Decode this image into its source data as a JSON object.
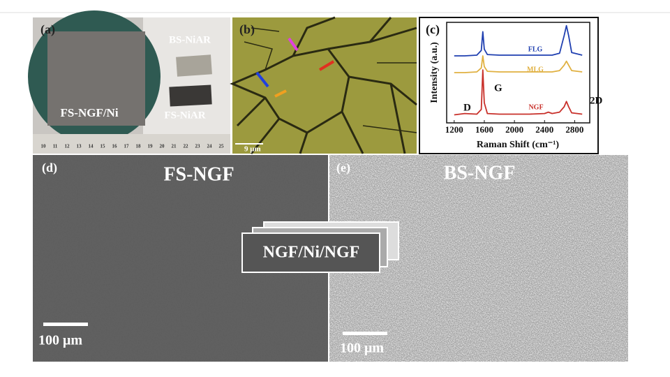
{
  "panels": {
    "a": {
      "label": "(a)",
      "texts": [
        "BS-NiAR",
        "FS-NGF/Ni",
        "FS-NiAR"
      ],
      "ruler": [
        10,
        11,
        12,
        13,
        14,
        15,
        16,
        17,
        18,
        19,
        20,
        21,
        22,
        23,
        24,
        25
      ]
    },
    "b": {
      "label": "(b)",
      "scale_bar": "9 μm"
    },
    "c": {
      "label": "(c)"
    },
    "d": {
      "label": "(d)",
      "title": "FS-NGF",
      "scale_bar": "100 μm"
    },
    "e": {
      "label": "(e)",
      "title": "BS-NGF",
      "scale_bar": "100 μm"
    }
  },
  "overlay": "NGF/Ni/NGF",
  "chart_data": {
    "type": "line",
    "xlabel": "Raman Shift (cm⁻¹)",
    "ylabel": "Intensity (a.u.)",
    "x": [
      1200,
      1340,
      1500,
      1560,
      1580,
      1600,
      1640,
      1800,
      2000,
      2200,
      2400,
      2450,
      2500,
      2600,
      2660,
      2690,
      2720,
      2760,
      2900
    ],
    "series": [
      {
        "name": "FLG",
        "color": "#1f3fb0",
        "values": [
          1.0,
          1.0,
          1.01,
          1.08,
          1.36,
          1.1,
          1.02,
          1.01,
          1.01,
          1.01,
          1.01,
          1.01,
          1.01,
          1.04,
          1.3,
          1.45,
          1.3,
          1.05,
          1.01
        ]
      },
      {
        "name": "MLG",
        "color": "#e0b040",
        "values": [
          0.75,
          0.75,
          0.76,
          0.82,
          1.0,
          0.84,
          0.77,
          0.76,
          0.76,
          0.76,
          0.76,
          0.76,
          0.76,
          0.78,
          0.86,
          0.92,
          0.86,
          0.78,
          0.76
        ]
      },
      {
        "name": "NGF",
        "color": "#c8302a",
        "values": [
          0.12,
          0.14,
          0.13,
          0.2,
          0.79,
          0.3,
          0.14,
          0.13,
          0.13,
          0.13,
          0.14,
          0.16,
          0.14,
          0.16,
          0.24,
          0.32,
          0.24,
          0.15,
          0.13
        ]
      }
    ],
    "annotations": [
      "D",
      "G",
      "2D"
    ],
    "xlim": [
      1100,
      3000
    ],
    "ylim": [
      0,
      1.5
    ],
    "xticks": [
      1200,
      1600,
      2000,
      2400,
      2800
    ]
  }
}
